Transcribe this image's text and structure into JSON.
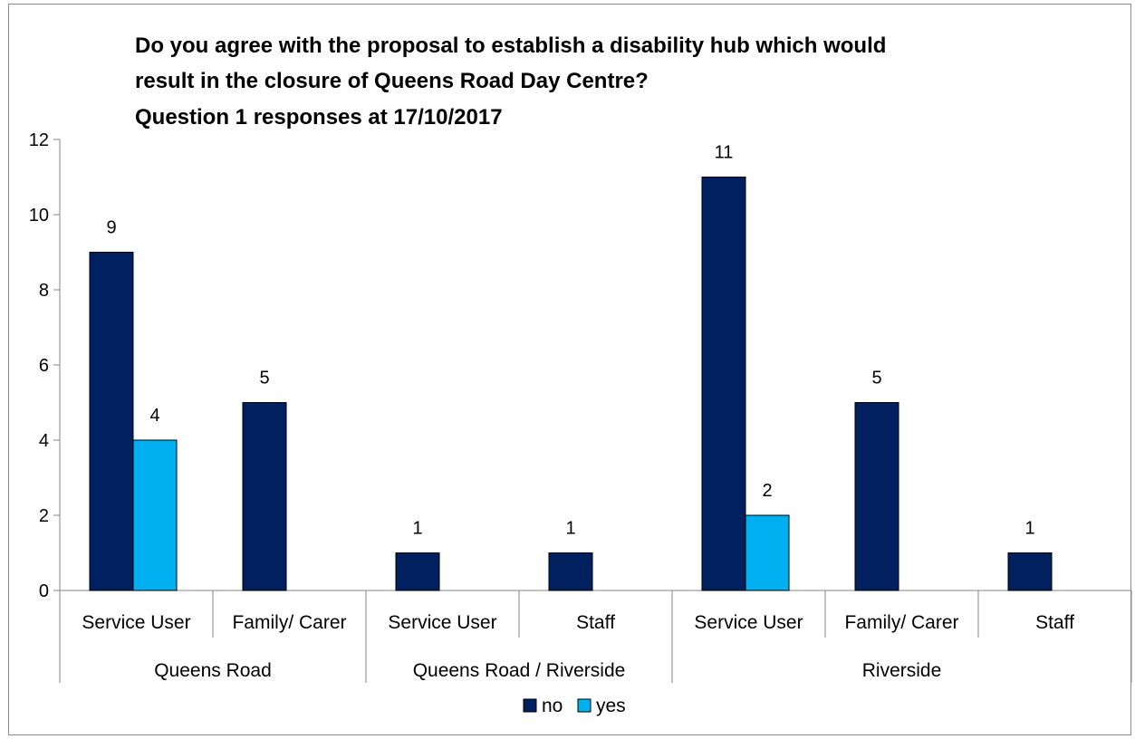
{
  "chart_data": {
    "type": "bar",
    "title_lines": [
      "Do you agree with the proposal  to establish a disability hub  which would",
      "result in the closure of Queens Road Day Centre?",
      "Question 1 responses at 17/10/2017"
    ],
    "xlabel": "",
    "ylabel": "",
    "ylim": [
      0,
      12
    ],
    "yticks": [
      0,
      2,
      4,
      6,
      8,
      10,
      12
    ],
    "grid": false,
    "legend_position": "bottom",
    "groups": [
      {
        "label": "Queens Road",
        "categories": [
          "Service User",
          "Family/ Carer"
        ]
      },
      {
        "label": "Queens Road / Riverside",
        "categories": [
          "Service User",
          "Staff"
        ]
      },
      {
        "label": "Riverside",
        "categories": [
          "Service User",
          "Family/ Carer",
          "Staff"
        ]
      }
    ],
    "categories": [
      "Service User",
      "Family/ Carer",
      "Service User",
      "Staff",
      "Service User",
      "Family/ Carer",
      "Staff"
    ],
    "series": [
      {
        "name": "no",
        "color": "#002060",
        "values": [
          9,
          5,
          1,
          1,
          11,
          5,
          1
        ]
      },
      {
        "name": "yes",
        "color": "#00b0f0",
        "values": [
          4,
          null,
          null,
          null,
          2,
          null,
          null
        ]
      }
    ]
  }
}
